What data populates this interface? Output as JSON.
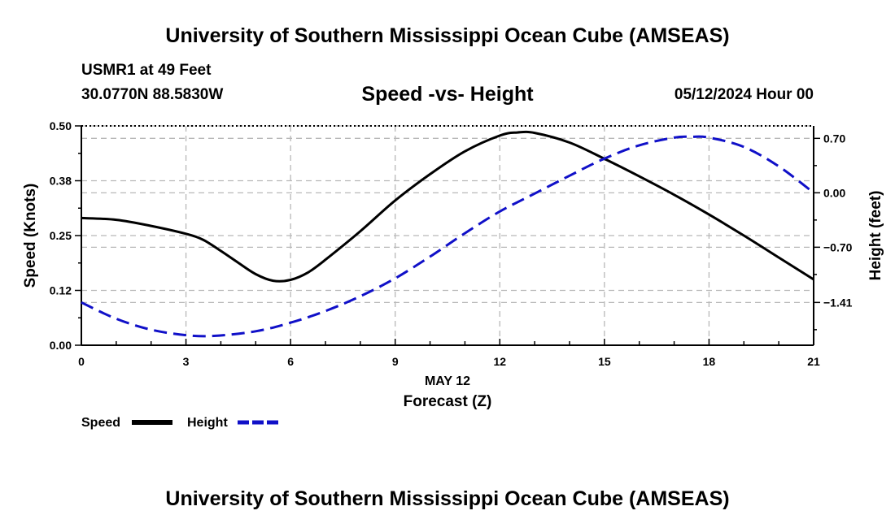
{
  "header": {
    "title": "University of Southern Mississippi Ocean Cube (AMSEAS)",
    "station": "USMR1 at 49 Feet",
    "coords": "30.0770N  88.5830W",
    "date_label": "05/12/2024 Hour 00"
  },
  "footer": {
    "title": "University of Southern Mississippi Ocean Cube (AMSEAS)"
  },
  "chart_data": {
    "type": "line",
    "title": "Speed -vs- Height",
    "xlabel": "Forecast (Z)",
    "x_date_label": "MAY 12",
    "ylabel_left": "Speed (Knots)",
    "ylabel_right": "Height (feet)",
    "xlim": [
      0,
      21
    ],
    "ylim_left": [
      0,
      0.5
    ],
    "ylim_right": [
      -1.96,
      0.86
    ],
    "x_ticks": [
      0,
      3,
      6,
      9,
      12,
      15,
      18,
      21
    ],
    "x_tick_labels": [
      "0",
      "3",
      "6",
      "9",
      "12",
      "15",
      "18",
      "21"
    ],
    "left_ticks": [
      0,
      0.125,
      0.25,
      0.375,
      0.5
    ],
    "left_tick_labels": [
      "0.00",
      "0.12",
      "0.25",
      "0.38",
      "0.50"
    ],
    "right_ticks": [
      0.7,
      0,
      -0.7,
      -1.41
    ],
    "right_tick_labels": [
      "0.70",
      "0.00",
      "−0.70",
      "−1.41"
    ],
    "grid": true,
    "series": [
      {
        "name": "Speed",
        "axis": "left",
        "color": "#000000",
        "style": "solid",
        "x": [
          0,
          1,
          2,
          3,
          3.5,
          4,
          4.5,
          5,
          5.5,
          6,
          6.5,
          7,
          8,
          9,
          10,
          11,
          12,
          12.5,
          13,
          14,
          15,
          16,
          17,
          18,
          19,
          20,
          21
        ],
        "values": [
          0.29,
          0.286,
          0.272,
          0.254,
          0.24,
          0.215,
          0.188,
          0.162,
          0.147,
          0.149,
          0.166,
          0.195,
          0.26,
          0.33,
          0.39,
          0.442,
          0.478,
          0.485,
          0.484,
          0.462,
          0.425,
          0.385,
          0.343,
          0.298,
          0.25,
          0.2,
          0.15
        ]
      },
      {
        "name": "Height",
        "axis": "right",
        "color": "#1010c8",
        "style": "dashed",
        "x": [
          0,
          1,
          2,
          3,
          3.8,
          5,
          6,
          7,
          8,
          9,
          10,
          11,
          12,
          13,
          14,
          15,
          16,
          17,
          17.5,
          18,
          19,
          20,
          21
        ],
        "values": [
          -1.41,
          -1.62,
          -1.76,
          -1.83,
          -1.84,
          -1.78,
          -1.67,
          -1.52,
          -1.33,
          -1.1,
          -0.82,
          -0.52,
          -0.24,
          -0.01,
          0.22,
          0.44,
          0.61,
          0.71,
          0.72,
          0.71,
          0.59,
          0.34,
          0.0
        ]
      }
    ],
    "legend": [
      "Speed",
      "Height"
    ],
    "legend_position": "bottom-left"
  }
}
